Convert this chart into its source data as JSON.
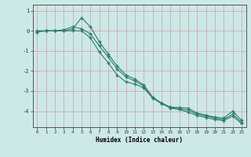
{
  "xlabel": "Humidex (Indice chaleur)",
  "ylabel": "",
  "bg_color": "#cce8e8",
  "grid_color": "#d4a0a0",
  "line_color": "#2e7d6e",
  "xlim": [
    -0.5,
    23.5
  ],
  "ylim": [
    -4.8,
    1.3
  ],
  "yticks": [
    1,
    0,
    -1,
    -2,
    -3,
    -4
  ],
  "xticks": [
    0,
    1,
    2,
    3,
    4,
    5,
    6,
    7,
    8,
    9,
    10,
    11,
    12,
    13,
    14,
    15,
    16,
    17,
    18,
    19,
    20,
    21,
    22,
    23
  ],
  "line1_x": [
    0,
    1,
    2,
    3,
    4,
    5,
    6,
    7,
    8,
    9,
    10,
    11,
    12,
    13,
    14,
    15,
    16,
    17,
    18,
    19,
    20,
    21,
    22,
    23
  ],
  "line1_y": [
    -0.05,
    0.0,
    0.0,
    0.0,
    0.1,
    0.65,
    0.2,
    -0.55,
    -1.15,
    -1.75,
    -2.2,
    -2.4,
    -2.7,
    -3.3,
    -3.6,
    -3.8,
    -3.82,
    -3.85,
    -4.1,
    -4.2,
    -4.3,
    -4.35,
    -4.0,
    -4.45
  ],
  "line2_x": [
    0,
    1,
    2,
    3,
    4,
    5,
    6,
    7,
    8,
    9,
    10,
    11,
    12,
    13,
    14,
    15,
    16,
    17,
    18,
    19,
    20,
    21,
    22,
    23
  ],
  "line2_y": [
    -0.05,
    0.0,
    0.0,
    0.05,
    0.2,
    0.1,
    -0.15,
    -0.75,
    -1.3,
    -1.9,
    -2.3,
    -2.5,
    -2.75,
    -3.35,
    -3.62,
    -3.82,
    -3.88,
    -3.95,
    -4.15,
    -4.25,
    -4.35,
    -4.42,
    -4.15,
    -4.55
  ],
  "line3_x": [
    0,
    1,
    2,
    3,
    4,
    5,
    6,
    7,
    8,
    9,
    10,
    11,
    12,
    13,
    14,
    15,
    16,
    17,
    18,
    19,
    20,
    21,
    22,
    23
  ],
  "line3_y": [
    0.0,
    0.0,
    0.0,
    0.0,
    0.0,
    0.0,
    -0.35,
    -1.05,
    -1.6,
    -2.2,
    -2.55,
    -2.65,
    -2.85,
    -3.35,
    -3.62,
    -3.85,
    -3.92,
    -4.05,
    -4.22,
    -4.32,
    -4.42,
    -4.47,
    -4.25,
    -4.62
  ]
}
